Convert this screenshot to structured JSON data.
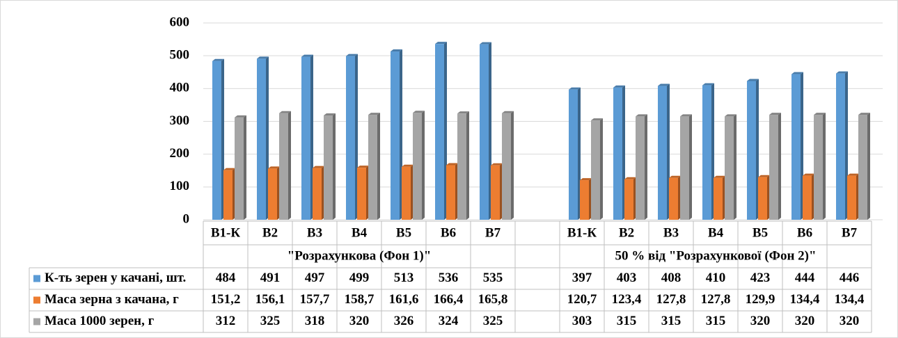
{
  "chart_data": {
    "type": "bar",
    "groups": [
      {
        "name": "\"Розрахункова (Фон 1)\"",
        "categories": [
          "В1-К",
          "В2",
          "В3",
          "В4",
          "В5",
          "В6",
          "В7"
        ]
      },
      {
        "name": "50 % від \"Розрахункової (Фон 2)\"",
        "categories": [
          "В1-К",
          "В2",
          "В3",
          "В4",
          "В5",
          "В6",
          "В7"
        ]
      }
    ],
    "series": [
      {
        "name": "К-ть зерен у качані, шт.",
        "color": "#5b9bd5",
        "values": [
          484,
          491,
          497,
          499,
          513,
          536,
          535,
          397,
          403,
          408,
          410,
          423,
          444,
          446
        ]
      },
      {
        "name": "Маса зерна з качана, г",
        "color": "#ed7d31",
        "values": [
          151.2,
          156.1,
          157.7,
          158.7,
          161.6,
          166.4,
          165.8,
          120.7,
          123.4,
          127.8,
          127.8,
          129.9,
          134.4,
          134.4
        ],
        "value_labels": [
          "151,2",
          "156,1",
          "157,7",
          "158,7",
          "161,6",
          "166,4",
          "165,8",
          "120,7",
          "123,4",
          "127,8",
          "127,8",
          "129,9",
          "134,4",
          "134,4"
        ]
      },
      {
        "name": "Маса 1000 зерен, г",
        "color": "#a5a5a5",
        "values": [
          312,
          325,
          318,
          320,
          326,
          324,
          325,
          303,
          315,
          315,
          315,
          320,
          320,
          320
        ]
      }
    ],
    "ylim": [
      0,
      600
    ],
    "yticks": [
      0,
      100,
      200,
      300,
      400,
      500,
      600
    ],
    "grid": true
  }
}
